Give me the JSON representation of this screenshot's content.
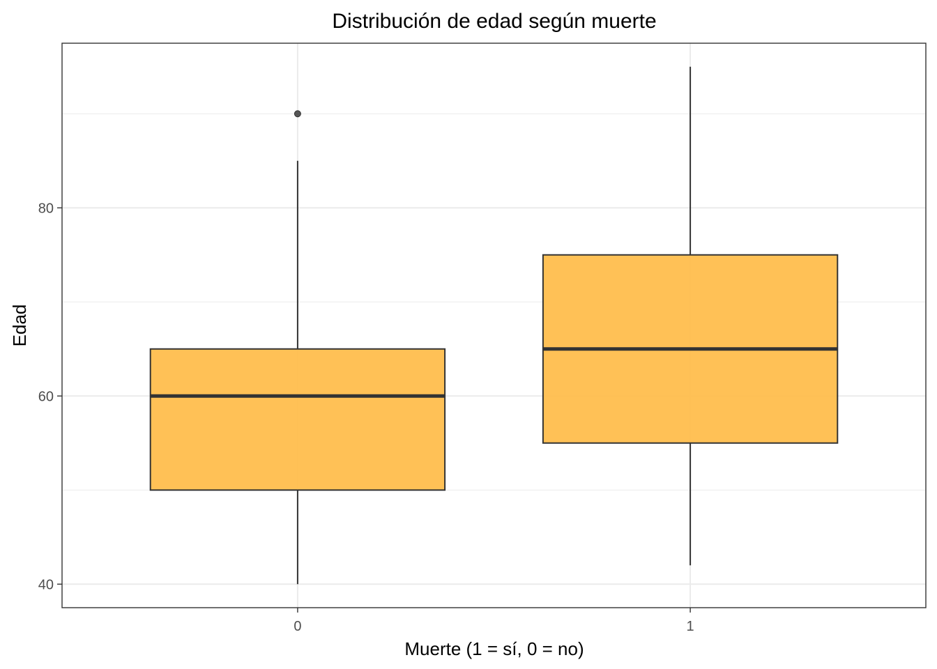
{
  "chart_data": {
    "type": "boxplot",
    "title": "Distribución de edad según muerte",
    "xlabel": "Muerte (1 = sí, 0 = no)",
    "ylabel": "Edad",
    "ylim": [
      37.5,
      97.5
    ],
    "y_ticks": [
      40,
      60,
      80
    ],
    "y_tick_labels": [
      "40",
      "60",
      "80"
    ],
    "y_minor_ticks": [
      50,
      70,
      90
    ],
    "grid": true,
    "fill_color": "#FFBE4D",
    "box_stroke": "#333333",
    "boxes": [
      {
        "category": "0",
        "min": 40,
        "q1": 50,
        "median": 60,
        "q3": 65,
        "max": 85,
        "outliers": [
          90
        ]
      },
      {
        "category": "1",
        "min": 42,
        "q1": 55,
        "median": 65,
        "q3": 75,
        "max": 95,
        "outliers": []
      }
    ]
  }
}
